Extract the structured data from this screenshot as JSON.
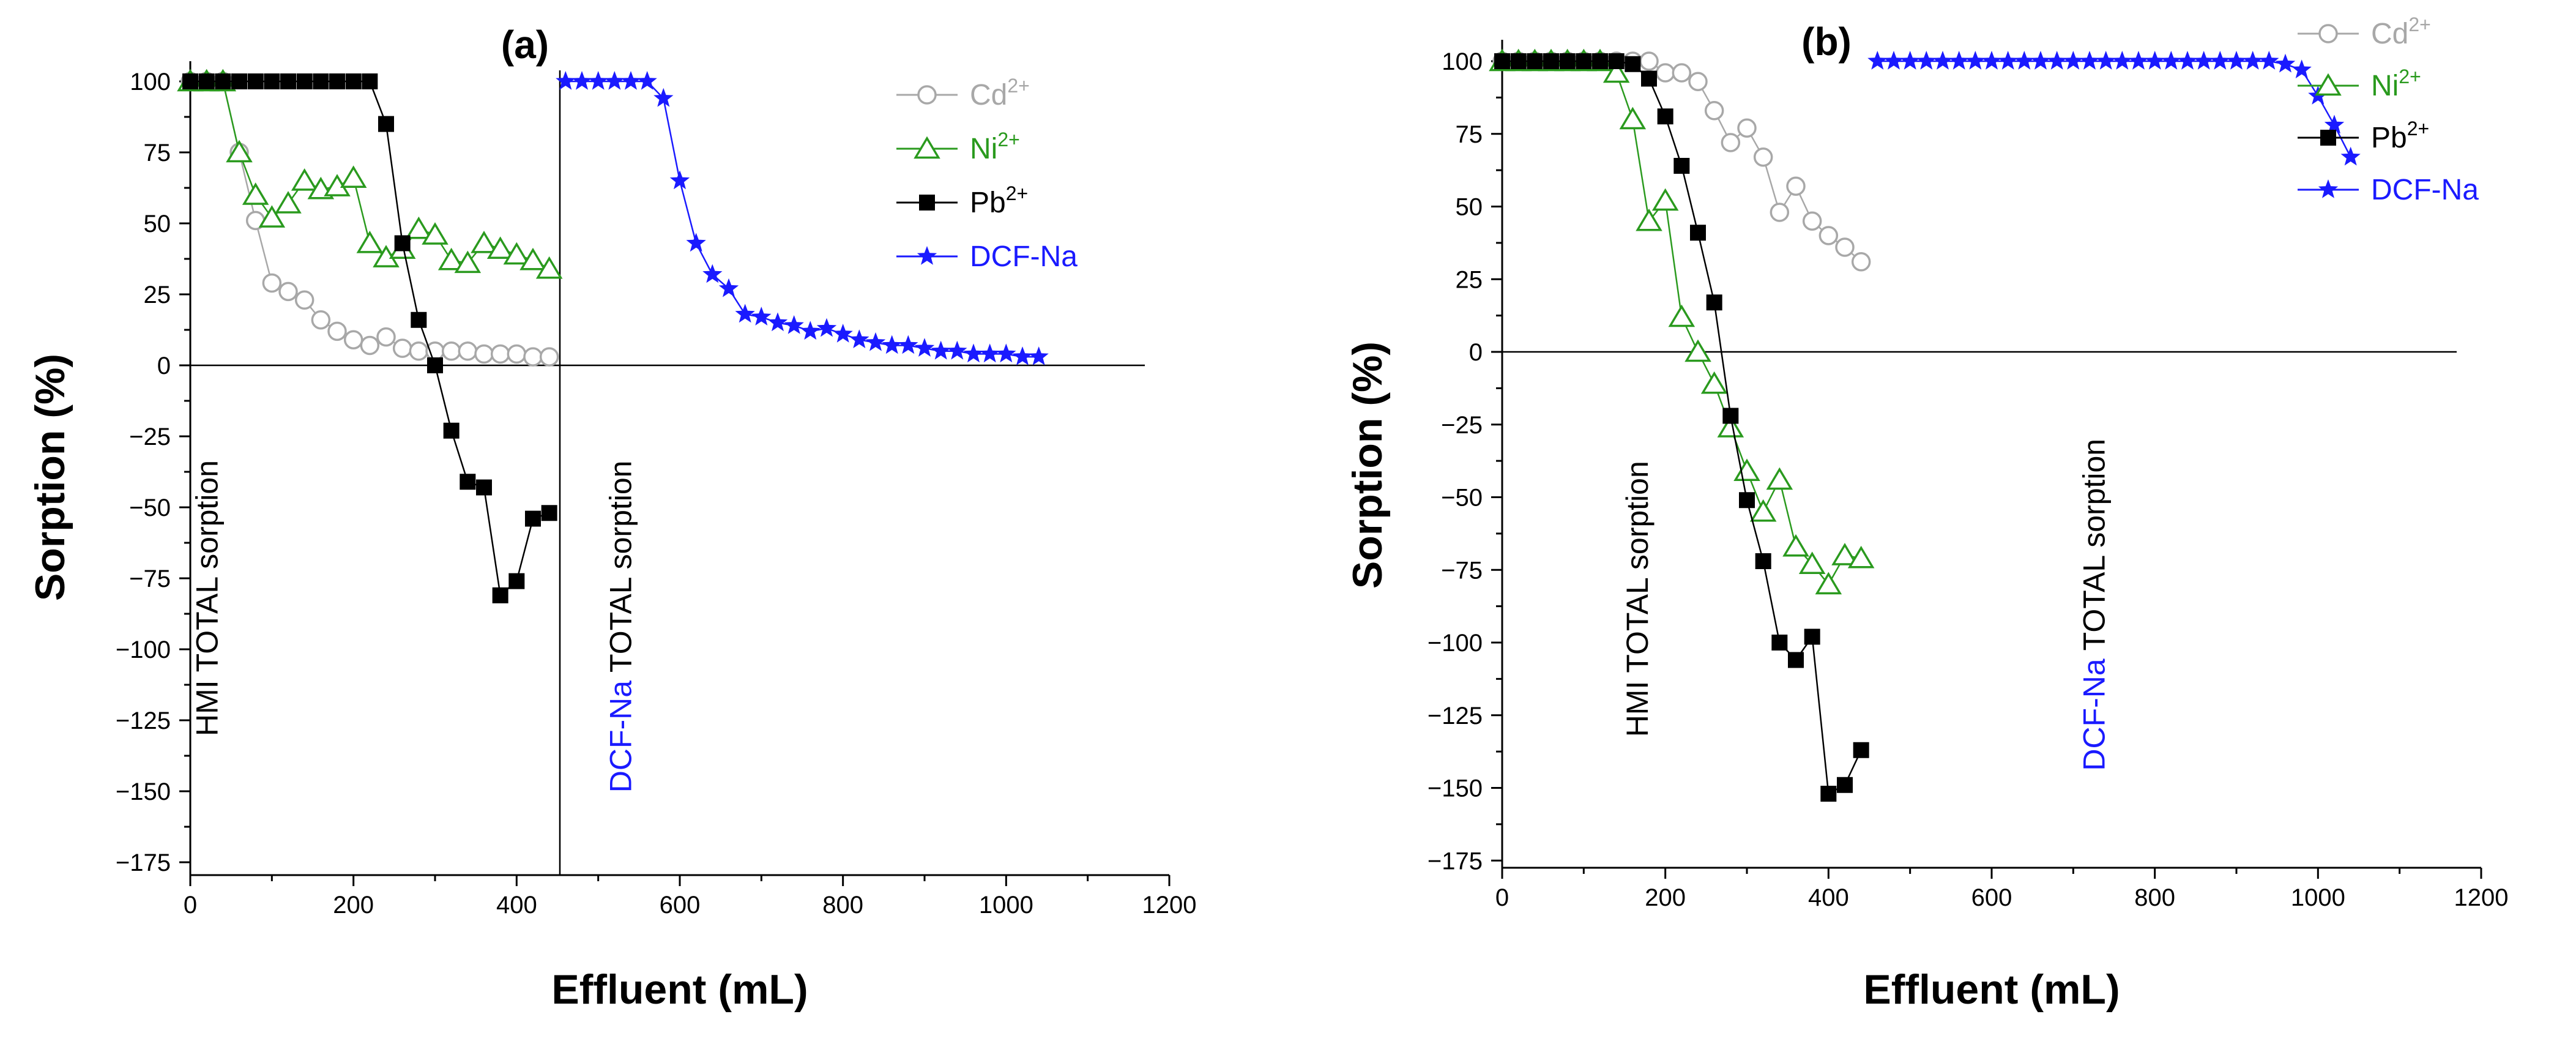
{
  "chart_data": [
    {
      "type": "line",
      "panel_label": "(a)",
      "xlabel": "Effluent (mL)",
      "ylabel": "Sorption (%)",
      "xlim": [
        0,
        1200
      ],
      "ylim": [
        -180,
        110
      ],
      "xticks": [
        0,
        200,
        400,
        600,
        800,
        1000,
        1200
      ],
      "yticks": [
        100,
        75,
        50,
        25,
        0,
        -25,
        -50,
        -75,
        -100,
        -125,
        -150,
        -175
      ],
      "xtick_labels": [
        "0",
        "200",
        "400",
        "600",
        "800",
        "1000",
        "1200"
      ],
      "ytick_labels": [
        "100",
        "75",
        "50",
        "25",
        "0",
        "−25",
        "−50",
        "−75",
        "−100",
        "−125",
        "−150",
        "−175"
      ],
      "zero_line_xmax": 1170,
      "vertical_line_x": 453,
      "annotations": [
        {
          "text": "HMI TOTAL sorption",
          "x": 20,
          "y": -82,
          "color": "#000000"
        },
        {
          "text_colored": "DCF-Na",
          "text_rest": " TOTAL sorption",
          "x": 527,
          "y": -92,
          "color": "#1a1aff"
        }
      ],
      "legend": {
        "labels": [
          "Cd",
          "Ni",
          "Pb",
          "DCF-Na"
        ],
        "superscripts": [
          "2+",
          "2+",
          "2+",
          ""
        ],
        "colors": [
          "#a8a8a8",
          "#2a9a1e",
          "#000000",
          "#1a1aff"
        ],
        "markers": [
          "circle",
          "triangle",
          "square",
          "star"
        ]
      },
      "series": [
        {
          "name": "Cd2+",
          "color": "#a8a8a8",
          "marker": "circle",
          "x": [
            0,
            20,
            40,
            60,
            80,
            100,
            120,
            140,
            160,
            180,
            200,
            220,
            240,
            260,
            280,
            300,
            320,
            340,
            360,
            380,
            400,
            420,
            440
          ],
          "y": [
            100,
            100,
            100,
            75,
            51,
            29,
            26,
            23,
            16,
            12,
            9,
            7,
            10,
            6,
            5,
            5,
            5,
            5,
            4,
            4,
            4,
            3,
            3
          ]
        },
        {
          "name": "Ni2+",
          "color": "#2a9a1e",
          "marker": "triangle",
          "x": [
            0,
            20,
            40,
            60,
            80,
            100,
            120,
            140,
            160,
            180,
            200,
            220,
            240,
            260,
            280,
            300,
            320,
            340,
            360,
            380,
            400,
            420,
            440
          ],
          "y": [
            100,
            100,
            100,
            75,
            60,
            52,
            57,
            65,
            62,
            63,
            66,
            43,
            38,
            41,
            48,
            46,
            37,
            36,
            43,
            41,
            39,
            37,
            34
          ]
        },
        {
          "name": "Pb2+",
          "color": "#000000",
          "marker": "square",
          "x": [
            0,
            20,
            40,
            60,
            80,
            100,
            120,
            140,
            160,
            180,
            200,
            220,
            240,
            260,
            280,
            300,
            320,
            340,
            360,
            380,
            400,
            420,
            440
          ],
          "y": [
            100,
            100,
            100,
            100,
            100,
            100,
            100,
            100,
            100,
            100,
            100,
            100,
            85,
            43,
            16,
            0,
            -23,
            -41,
            -43,
            -81,
            -76,
            -54,
            -52
          ]
        },
        {
          "name": "DCF-Na",
          "color": "#1a1aff",
          "marker": "star",
          "x": [
            460,
            480,
            500,
            520,
            540,
            560,
            580,
            600,
            620,
            640,
            660,
            680,
            700,
            720,
            740,
            760,
            780,
            800,
            820,
            840,
            860,
            880,
            900,
            920,
            940,
            960,
            980,
            1000,
            1020,
            1040
          ],
          "y": [
            100,
            100,
            100,
            100,
            100,
            100,
            94,
            65,
            43,
            32,
            27,
            18,
            17,
            15,
            14,
            12,
            13,
            11,
            9,
            8,
            7,
            7,
            6,
            5,
            5,
            4,
            4,
            4,
            3,
            3
          ]
        }
      ]
    },
    {
      "type": "line",
      "panel_label": "(b)",
      "xlabel": "Effluent (mL)",
      "ylabel": "Sorption (%)",
      "xlim": [
        0,
        1200
      ],
      "ylim": [
        -180,
        105
      ],
      "xticks": [
        0,
        200,
        400,
        600,
        800,
        1000,
        1200
      ],
      "yticks": [
        100,
        75,
        50,
        25,
        0,
        -25,
        -50,
        -75,
        -100,
        -125,
        -150,
        -175
      ],
      "xtick_labels": [
        "0",
        "200",
        "400",
        "600",
        "800",
        "1000",
        "1200"
      ],
      "ytick_labels": [
        "100",
        "75",
        "50",
        "25",
        "0",
        "−25",
        "−50",
        "−75",
        "−100",
        "−125",
        "−150",
        "−175"
      ],
      "zero_line_xmax": 1170,
      "vertical_line_x": null,
      "annotations": [
        {
          "text": "HMI TOTAL sorption",
          "x": 165,
          "y": -85,
          "color": "#000000"
        },
        {
          "text_colored": "DCF-Na",
          "text_rest": " TOTAL sorption",
          "x": 725,
          "y": -87,
          "color": "#1a1aff"
        }
      ],
      "legend": {
        "labels": [
          "Cd",
          "Ni",
          "Pb",
          "DCF-Na"
        ],
        "superscripts": [
          "2+",
          "2+",
          "2+",
          ""
        ],
        "colors": [
          "#a8a8a8",
          "#2a9a1e",
          "#000000",
          "#1a1aff"
        ],
        "markers": [
          "circle",
          "triangle",
          "square",
          "star"
        ]
      },
      "series": [
        {
          "name": "Cd2+",
          "color": "#a8a8a8",
          "marker": "circle",
          "x": [
            0,
            20,
            40,
            60,
            80,
            100,
            120,
            140,
            160,
            180,
            200,
            220,
            240,
            260,
            280,
            300,
            320,
            340,
            360,
            380,
            400,
            420,
            440
          ],
          "y": [
            100,
            100,
            100,
            100,
            100,
            100,
            100,
            100,
            100,
            100,
            96,
            96,
            93,
            83,
            72,
            77,
            67,
            48,
            57,
            45,
            40,
            36,
            31
          ]
        },
        {
          "name": "Ni2+",
          "color": "#2a9a1e",
          "marker": "triangle",
          "x": [
            0,
            20,
            40,
            60,
            80,
            100,
            120,
            140,
            160,
            180,
            200,
            220,
            240,
            260,
            280,
            300,
            320,
            340,
            360,
            380,
            400,
            420,
            440
          ],
          "y": [
            100,
            100,
            100,
            100,
            100,
            100,
            100,
            96,
            80,
            45,
            52,
            12,
            0,
            -11,
            -26,
            -41,
            -55,
            -44,
            -67,
            -73,
            -80,
            -70,
            -71
          ]
        },
        {
          "name": "Pb2+",
          "color": "#000000",
          "marker": "square",
          "x": [
            0,
            20,
            40,
            60,
            80,
            100,
            120,
            140,
            160,
            180,
            200,
            220,
            240,
            260,
            280,
            300,
            320,
            340,
            360,
            380,
            400,
            420,
            440
          ],
          "y": [
            100,
            100,
            100,
            100,
            100,
            100,
            100,
            100,
            99,
            94,
            81,
            64,
            41,
            17,
            -22,
            -51,
            -72,
            -100,
            -106,
            -98,
            -152,
            -149,
            -137
          ]
        },
        {
          "name": "DCF-Na",
          "color": "#1a1aff",
          "marker": "star",
          "x": [
            460,
            480,
            500,
            520,
            540,
            560,
            580,
            600,
            620,
            640,
            660,
            680,
            700,
            720,
            740,
            760,
            780,
            800,
            820,
            840,
            860,
            880,
            900,
            920,
            940,
            960,
            980,
            1000,
            1020,
            1040
          ],
          "y": [
            100,
            100,
            100,
            100,
            100,
            100,
            100,
            100,
            100,
            100,
            100,
            100,
            100,
            100,
            100,
            100,
            100,
            100,
            100,
            100,
            100,
            100,
            100,
            100,
            100,
            99,
            97,
            88,
            78,
            67
          ]
        }
      ]
    }
  ]
}
